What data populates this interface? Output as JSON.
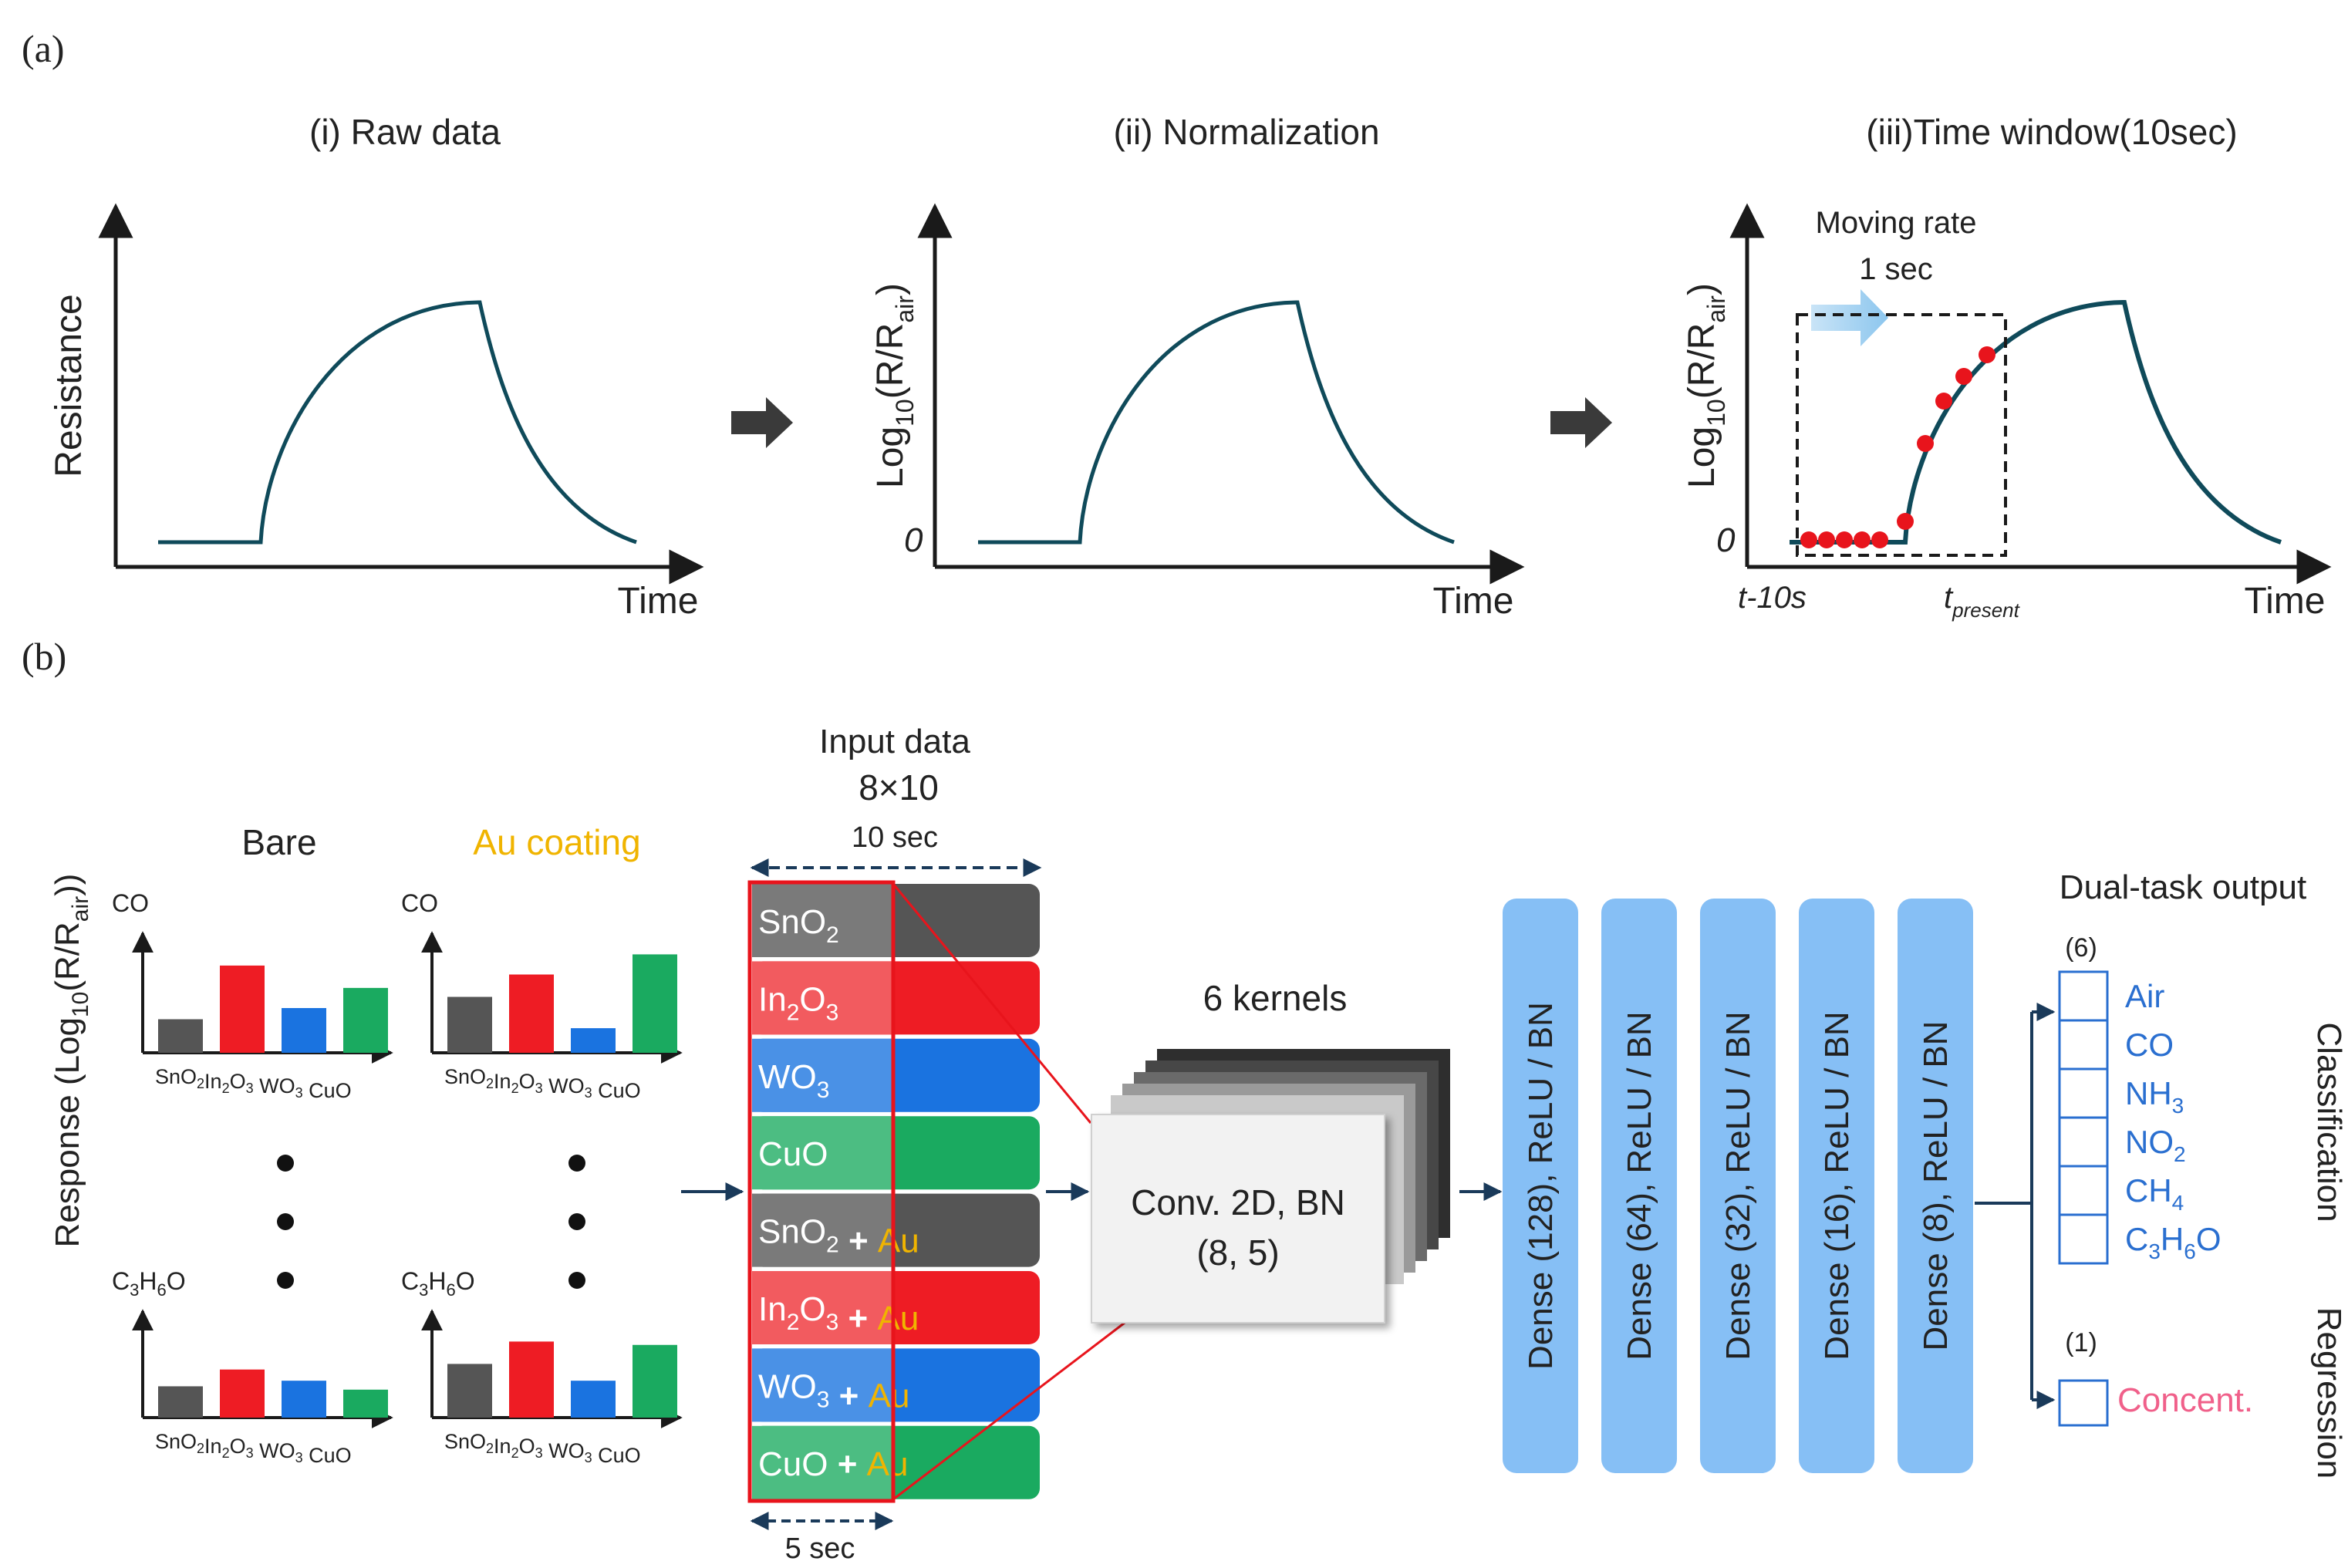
{
  "panel_a": {
    "label": "(a)",
    "step1": {
      "title": "(i) Raw data",
      "ylabel": "Resistance",
      "xlabel": "Time"
    },
    "step2": {
      "title": "(ii) Normalization",
      "ylabel_pre": "Log",
      "ylabel_sub": "10",
      "ylabel_mid": "(R/R",
      "ylabel_sub2": "air",
      "ylabel_post": ")",
      "zero": "0",
      "xlabel": "Time"
    },
    "step3": {
      "title": "(iii)Time window(10sec)",
      "ylabel_pre": "Log",
      "ylabel_sub": "10",
      "ylabel_mid": "(R/R",
      "ylabel_sub2": "air",
      "ylabel_post": ")",
      "zero": "0",
      "xlabel": "Time",
      "moving_rate": "Moving rate",
      "rate_value": "1 sec",
      "tick_start": "t-10s",
      "tick_present_base": "t",
      "tick_present_sub": "present",
      "window_seconds": 10
    },
    "curve_color": "#0f4a5a",
    "dot_color": "#e8141c"
  },
  "panel_b": {
    "label": "(b)",
    "response_label": {
      "pre": "Response (Log",
      "sub": "10",
      "mid": "(R/R",
      "sub2": "air",
      "post": "))"
    },
    "bare_label": "Bare",
    "au_label": "Au coating",
    "au_color": "#f0b400",
    "gas_top": "CO",
    "gas_bottom": {
      "base1": "C",
      "sub1": "3",
      "base2": "H",
      "sub2": "6",
      "base3": "O"
    },
    "bar_axis": [
      {
        "base": "SnO",
        "sub": "2"
      },
      {
        "base": "In",
        "sub": "2",
        "base2": "O",
        "sub2": "3"
      },
      {
        "base": "WO",
        "sub": "3"
      },
      {
        "base": "CuO",
        "sub": ""
      }
    ],
    "bar_colors": [
      "#555555",
      "#ee1c24",
      "#1a73e0",
      "#1aaa60"
    ],
    "mini_charts": [
      {
        "id": "bare-co",
        "values": [
          0.3,
          0.78,
          0.4,
          0.58
        ]
      },
      {
        "id": "au-co",
        "values": [
          0.5,
          0.7,
          0.22,
          0.88
        ]
      },
      {
        "id": "bare-c3h6o",
        "values": [
          0.28,
          0.43,
          0.33,
          0.25
        ]
      },
      {
        "id": "au-c3h6o",
        "values": [
          0.48,
          0.68,
          0.33,
          0.65
        ]
      }
    ],
    "input": {
      "title": "Input data",
      "size": "8×10",
      "duration": "10 sec",
      "kernel_width": "5 sec",
      "rows": [
        {
          "base": "SnO",
          "sub": "2",
          "au": false,
          "color": "#555555",
          "fade": "#7a7a7a"
        },
        {
          "base": "In",
          "sub": "2",
          "base2": "O",
          "sub2": "3",
          "au": false,
          "color": "#ee1c24",
          "fade": "#f25b5f"
        },
        {
          "base": "WO",
          "sub": "3",
          "au": false,
          "color": "#1a73e0",
          "fade": "#4a91e6"
        },
        {
          "base": "CuO",
          "sub": "",
          "au": false,
          "color": "#1aaa60",
          "fade": "#4cbd82"
        },
        {
          "base": "SnO",
          "sub": "2",
          "au": true,
          "color": "#555555",
          "fade": "#7a7a7a"
        },
        {
          "base": "In",
          "sub": "2",
          "base2": "O",
          "sub2": "3",
          "au": true,
          "color": "#ee1c24",
          "fade": "#f25b5f"
        },
        {
          "base": "WO",
          "sub": "3",
          "au": true,
          "color": "#1a73e0",
          "fade": "#4a91e6"
        },
        {
          "base": "CuO",
          "sub": "",
          "au": true,
          "color": "#1aaa60",
          "fade": "#4cbd82"
        }
      ],
      "plus": "+",
      "au_text": "Au"
    },
    "conv": {
      "kernels_label": "6 kernels",
      "line1": "Conv. 2D, BN",
      "line2": "(8, 5)"
    },
    "dense_layers": [
      "Dense (128), ReLU / BN",
      "Dense (64), ReLU / BN",
      "Dense (32), ReLU / BN",
      "Dense (16), ReLU / BN",
      "Dense (8), ReLU / BN"
    ],
    "dense_color": "#86bff5",
    "output": {
      "title": "Dual-task output",
      "class_count": "(6)",
      "classes": [
        {
          "base": "Air"
        },
        {
          "base": "CO"
        },
        {
          "base": "NH",
          "sub": "3"
        },
        {
          "base": "NO",
          "sub": "2"
        },
        {
          "base": "CH",
          "sub": "4"
        },
        {
          "base": "C",
          "sub": "3",
          "base2": "H",
          "sub2": "6",
          "base3": "O"
        }
      ],
      "class_color": "#2a6fd0",
      "classification_label": "Classification",
      "reg_count": "(1)",
      "reg_label": "Concent.",
      "reg_color": "#f0608a",
      "regression_label": "Regression"
    }
  }
}
